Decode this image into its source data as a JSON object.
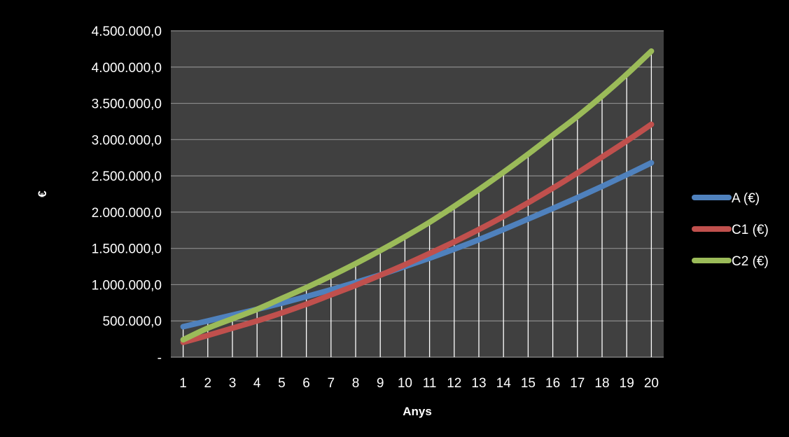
{
  "chart_data": {
    "type": "line",
    "title": "",
    "xlabel": "Anys",
    "ylabel": "€",
    "categories": [
      "1",
      "2",
      "3",
      "4",
      "5",
      "6",
      "7",
      "8",
      "9",
      "10",
      "11",
      "12",
      "13",
      "14",
      "15",
      "16",
      "17",
      "18",
      "19",
      "20"
    ],
    "ylim": [
      0,
      4500000
    ],
    "y_ticks": [
      {
        "value": 0,
        "label": "-"
      },
      {
        "value": 500000,
        "label": "500.000,0"
      },
      {
        "value": 1000000,
        "label": "1.000.000,0"
      },
      {
        "value": 1500000,
        "label": "1.500.000,0"
      },
      {
        "value": 2000000,
        "label": "2.000.000,0"
      },
      {
        "value": 2500000,
        "label": "2.500.000,0"
      },
      {
        "value": 3000000,
        "label": "3.000.000,0"
      },
      {
        "value": 3500000,
        "label": "3.500.000,0"
      },
      {
        "value": 4000000,
        "label": "4.000.000,0"
      },
      {
        "value": 4500000,
        "label": "4.500.000,0"
      }
    ],
    "series": [
      {
        "name": "A (€)",
        "color": "#4f81bd",
        "values": [
          420000,
          500000,
          580000,
          660000,
          745000,
          835000,
          930000,
          1030000,
          1135000,
          1250000,
          1365000,
          1490000,
          1620000,
          1760000,
          1905000,
          2050000,
          2200000,
          2355000,
          2515000,
          2680000
        ]
      },
      {
        "name": "C1 (€)",
        "color": "#c0504d",
        "values": [
          205000,
          300000,
          400000,
          500000,
          610000,
          730000,
          860000,
          990000,
          1130000,
          1275000,
          1430000,
          1590000,
          1760000,
          1940000,
          2130000,
          2330000,
          2540000,
          2760000,
          2980000,
          3210000
        ]
      },
      {
        "name": "C2 (€)",
        "color": "#9bbb59",
        "values": [
          240000,
          400000,
          530000,
          660000,
          810000,
          960000,
          1120000,
          1290000,
          1470000,
          1660000,
          1860000,
          2080000,
          2310000,
          2550000,
          2800000,
          3060000,
          3320000,
          3600000,
          3900000,
          4220000
        ]
      }
    ],
    "grid": "horizontal",
    "drop_lines": true,
    "legend_position": "right",
    "colors": {
      "outer_background": "#000000",
      "plot_background": "#404040",
      "gridline": "#8c8c8c",
      "drop_line": "#ffffff",
      "text": "#ffffff"
    }
  }
}
